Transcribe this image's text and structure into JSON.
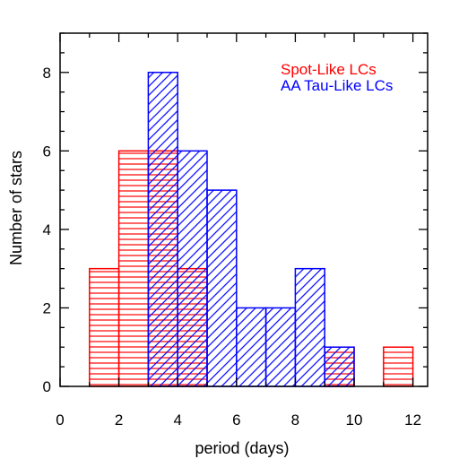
{
  "chart_data": {
    "type": "bar",
    "title": "",
    "xlabel": "period (days)",
    "ylabel": "Number of stars",
    "xlim": [
      0,
      12.5
    ],
    "ylim": [
      0,
      9
    ],
    "xticks": [
      "0",
      "2",
      "4",
      "6",
      "8",
      "10",
      "12"
    ],
    "yticks": [
      "0",
      "2",
      "4",
      "6",
      "8"
    ],
    "bin_width": 1,
    "grid": false,
    "legend_position": "top-right",
    "series": [
      {
        "name": "Spot-Like LCs",
        "color": "#ff0000",
        "hatch": "horizontal",
        "bins": [
          {
            "x0": 1,
            "x1": 2,
            "count": 3
          },
          {
            "x0": 2,
            "x1": 3,
            "count": 6
          },
          {
            "x0": 3,
            "x1": 4,
            "count": 6
          },
          {
            "x0": 4,
            "x1": 5,
            "count": 3
          },
          {
            "x0": 9,
            "x1": 10,
            "count": 1
          },
          {
            "x0": 11,
            "x1": 12,
            "count": 1
          }
        ]
      },
      {
        "name": "AA Tau-Like LCs",
        "color": "#0000ff",
        "hatch": "diagonal",
        "bins": [
          {
            "x0": 3,
            "x1": 4,
            "count": 8
          },
          {
            "x0": 4,
            "x1": 5,
            "count": 6
          },
          {
            "x0": 5,
            "x1": 6,
            "count": 5
          },
          {
            "x0": 6,
            "x1": 7,
            "count": 2
          },
          {
            "x0": 7,
            "x1": 8,
            "count": 2
          },
          {
            "x0": 8,
            "x1": 9,
            "count": 3
          },
          {
            "x0": 9,
            "x1": 10,
            "count": 1
          }
        ]
      }
    ]
  }
}
